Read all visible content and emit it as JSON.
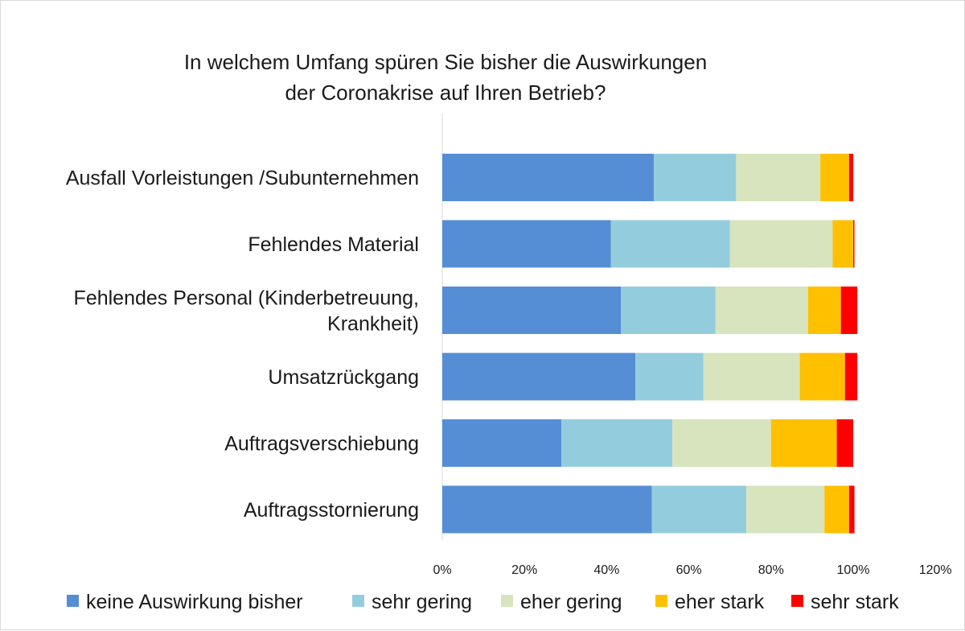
{
  "chart_data": {
    "type": "bar",
    "orientation": "horizontal",
    "stacked": true,
    "title": [
      "In welchem Umfang spüren Sie bisher die Auswirkungen",
      "der Coronakrise auf Ihren Betrieb?"
    ],
    "categories": [
      [
        "Ausfall Vorleistungen /Subunternehmen"
      ],
      [
        "Fehlendes Material"
      ],
      [
        "Fehlendes Personal (Kinderbetreuung,",
        "Krankheit)"
      ],
      [
        "Umsatzrückgang"
      ],
      [
        "Auftragsverschiebung"
      ],
      [
        "Auftragsstornierung"
      ]
    ],
    "series": [
      {
        "name": "keine Auswirkung bisher",
        "color": "#558ed5",
        "values": [
          51.5,
          41.0,
          43.5,
          47.0,
          29.0,
          51.0
        ]
      },
      {
        "name": "sehr gering",
        "color": "#93cddd",
        "values": [
          20.0,
          29.0,
          23.0,
          16.5,
          27.0,
          23.0
        ]
      },
      {
        "name": "eher gering",
        "color": "#d7e4bd",
        "values": [
          20.5,
          25.0,
          22.5,
          23.5,
          24.0,
          19.0
        ]
      },
      {
        "name": "eher stark",
        "color": "#ffc000",
        "values": [
          7.0,
          5.0,
          8.0,
          11.0,
          16.0,
          6.0
        ]
      },
      {
        "name": "sehr stark",
        "color": "#ff0000",
        "values": [
          1.0,
          0.3,
          4.0,
          3.0,
          4.0,
          1.3
        ]
      }
    ],
    "x_ticks": [
      "0%",
      "20%",
      "40%",
      "60%",
      "80%",
      "100%",
      "120%"
    ],
    "xlim": [
      0,
      120
    ],
    "grid": false,
    "legend_position": "bottom"
  }
}
